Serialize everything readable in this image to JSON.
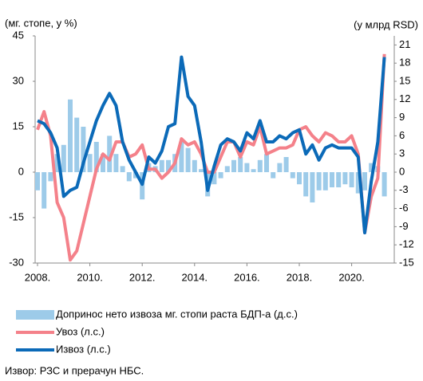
{
  "chart_data": {
    "type": "bar-line",
    "y_label": "(мг. стопе, у %)",
    "y2_label": "(у млрд RSD)",
    "source": "Извор: РЗС и прерачун НБС.",
    "categories": [
      "2008.",
      null,
      null,
      null,
      null,
      null,
      null,
      null,
      "2010.",
      null,
      null,
      null,
      null,
      null,
      null,
      null,
      "2012.",
      null,
      null,
      null,
      null,
      null,
      null,
      null,
      "2014.",
      null,
      null,
      null,
      null,
      null,
      null,
      null,
      "2016.",
      null,
      null,
      null,
      null,
      null,
      null,
      null,
      "2018.",
      null,
      null,
      null,
      null,
      null,
      null,
      null,
      "2020.",
      null,
      null,
      null,
      null,
      null
    ],
    "ylim": [
      -30,
      45
    ],
    "yticks": [
      -30,
      -15,
      0,
      15,
      30,
      45
    ],
    "y2lim": [
      -15,
      22.5
    ],
    "y2ticks": [
      -15,
      -12,
      -9,
      -6,
      -3,
      0,
      3,
      6,
      9,
      12,
      15,
      18,
      21
    ],
    "series": [
      {
        "name": "Допринос нето извоза мг. стопи раста БДП-а (д.с.)",
        "kind": "bar",
        "axis": "y2",
        "color": "#9dcbe9",
        "values": [
          -3,
          -6,
          -1.5,
          3,
          4.5,
          12,
          9,
          7.5,
          3,
          5,
          3,
          6,
          3,
          1,
          -1.5,
          -1,
          -4.5,
          1.5,
          1,
          2,
          2,
          3,
          5,
          4,
          2,
          0.5,
          -4,
          -2,
          -1,
          1,
          2,
          2.5,
          1.5,
          0.5,
          2,
          3,
          -1,
          1.5,
          2.5,
          -1,
          -2,
          -4,
          -5,
          -3,
          -3,
          -2.5,
          -2.5,
          -2,
          -2.5,
          -3.5,
          -3,
          1.5,
          1,
          -4
        ]
      },
      {
        "name": "Увоз (л.с.)",
        "kind": "line",
        "color": "#f4818a",
        "values": [
          14,
          20,
          12,
          -10,
          -15,
          -29,
          -26,
          -17,
          -8,
          1,
          6,
          4,
          10,
          10,
          5,
          6,
          9,
          1,
          1,
          -2,
          0,
          3,
          11,
          9,
          10,
          6,
          0,
          0,
          5,
          10,
          10,
          5,
          10,
          9,
          15,
          6,
          7,
          8,
          8,
          9,
          14,
          15,
          12,
          10,
          13,
          12,
          10,
          10,
          12,
          6,
          -20,
          -8,
          -2,
          39
        ]
      },
      {
        "name": "Извоз (л.с.)",
        "kind": "line",
        "color": "#0b6ab8",
        "values": [
          17,
          16,
          13,
          8,
          -8,
          -6,
          -5,
          3,
          10,
          17,
          22,
          26,
          22,
          10,
          4,
          0,
          -4,
          5,
          3,
          7,
          15,
          16,
          38,
          25,
          22,
          10,
          -6,
          2,
          9,
          11,
          10,
          7,
          13,
          11,
          17,
          10,
          10,
          12,
          11,
          13,
          14,
          6,
          9,
          4,
          8,
          9,
          8,
          8,
          8,
          5,
          -20,
          -3,
          10,
          38
        ]
      }
    ]
  }
}
